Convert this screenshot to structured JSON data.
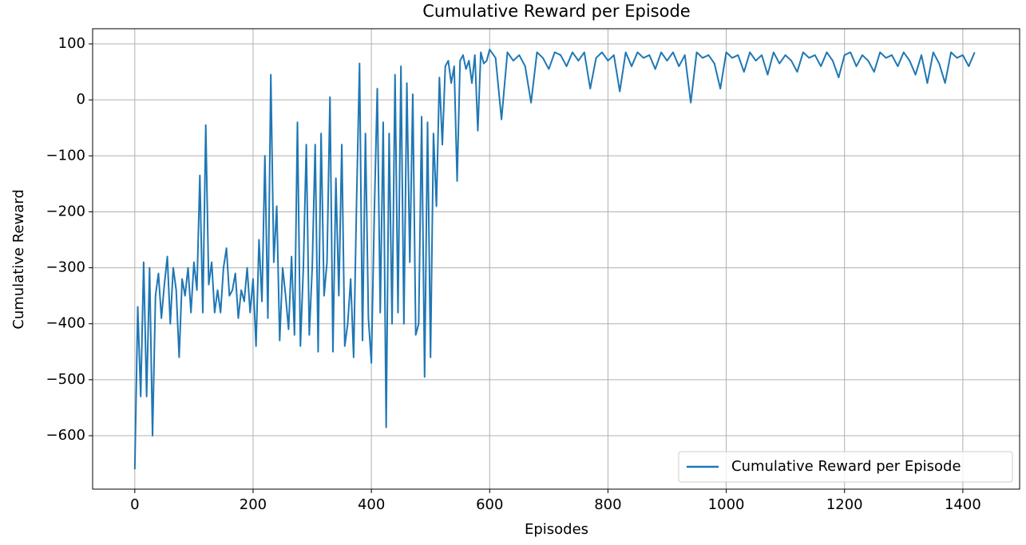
{
  "chart_data": {
    "type": "line",
    "title": "Cumulative Reward per Episode",
    "x_label": "Episodes",
    "y_label": "Cumulative Reward",
    "x": [
      0,
      5,
      10,
      15,
      20,
      25,
      30,
      35,
      40,
      45,
      50,
      55,
      60,
      65,
      70,
      75,
      80,
      85,
      90,
      95,
      100,
      105,
      110,
      115,
      120,
      125,
      130,
      135,
      140,
      145,
      150,
      155,
      160,
      165,
      170,
      175,
      180,
      185,
      190,
      195,
      200,
      205,
      210,
      215,
      220,
      225,
      230,
      235,
      240,
      245,
      250,
      255,
      260,
      265,
      270,
      275,
      280,
      285,
      290,
      295,
      300,
      305,
      310,
      315,
      320,
      325,
      330,
      335,
      340,
      345,
      350,
      355,
      360,
      365,
      370,
      375,
      380,
      385,
      390,
      395,
      400,
      405,
      410,
      415,
      420,
      425,
      430,
      435,
      440,
      445,
      450,
      455,
      460,
      465,
      470,
      475,
      480,
      485,
      490,
      495,
      500,
      505,
      510,
      515,
      520,
      525,
      530,
      535,
      540,
      545,
      550,
      555,
      560,
      565,
      570,
      575,
      580,
      585,
      590,
      595,
      600,
      610,
      620,
      630,
      640,
      650,
      660,
      670,
      680,
      690,
      700,
      710,
      720,
      730,
      740,
      750,
      760,
      770,
      780,
      790,
      800,
      810,
      820,
      830,
      840,
      850,
      860,
      870,
      880,
      890,
      900,
      910,
      920,
      930,
      940,
      950,
      960,
      970,
      980,
      990,
      1000,
      1010,
      1020,
      1030,
      1040,
      1050,
      1060,
      1070,
      1080,
      1090,
      1100,
      1110,
      1120,
      1130,
      1140,
      1150,
      1160,
      1170,
      1180,
      1190,
      1200,
      1210,
      1220,
      1230,
      1240,
      1250,
      1260,
      1270,
      1280,
      1290,
      1300,
      1310,
      1320,
      1330,
      1340,
      1350,
      1360,
      1370,
      1380,
      1390,
      1400,
      1410,
      1420
    ],
    "series": [
      {
        "name": "Cumulative Reward per Episode",
        "color": "#1f77b4",
        "values": [
          -660,
          -370,
          -530,
          -290,
          -530,
          -300,
          -600,
          -350,
          -310,
          -390,
          -330,
          -280,
          -400,
          -300,
          -340,
          -460,
          -320,
          -350,
          -300,
          -380,
          -290,
          -340,
          -135,
          -380,
          -45,
          -330,
          -290,
          -380,
          -340,
          -380,
          -300,
          -265,
          -350,
          -340,
          -310,
          -390,
          -340,
          -360,
          -300,
          -380,
          -320,
          -440,
          -250,
          -360,
          -100,
          -390,
          45,
          -290,
          -190,
          -430,
          -300,
          -350,
          -410,
          -280,
          -420,
          -40,
          -440,
          -300,
          -80,
          -420,
          -300,
          -80,
          -450,
          -60,
          -350,
          -290,
          5,
          -450,
          -140,
          -350,
          -80,
          -440,
          -400,
          -320,
          -460,
          -180,
          65,
          -430,
          -60,
          -390,
          -470,
          -200,
          20,
          -380,
          -40,
          -585,
          -60,
          -400,
          45,
          -380,
          60,
          -400,
          30,
          -290,
          10,
          -420,
          -400,
          -30,
          -495,
          -40,
          -460,
          -60,
          -190,
          40,
          -80,
          60,
          70,
          30,
          60,
          -145,
          70,
          80,
          55,
          70,
          30,
          80,
          -55,
          85,
          65,
          70,
          90,
          75,
          -35,
          85,
          70,
          80,
          60,
          -5,
          85,
          75,
          55,
          85,
          80,
          60,
          85,
          70,
          85,
          20,
          75,
          85,
          70,
          80,
          15,
          85,
          60,
          85,
          75,
          80,
          55,
          85,
          70,
          85,
          60,
          80,
          -5,
          85,
          75,
          80,
          65,
          20,
          85,
          75,
          80,
          50,
          85,
          70,
          80,
          45,
          85,
          65,
          80,
          70,
          50,
          85,
          75,
          80,
          60,
          85,
          70,
          40,
          80,
          85,
          60,
          80,
          70,
          50,
          85,
          75,
          80,
          60,
          85,
          70,
          45,
          80,
          30,
          85,
          65,
          30,
          85,
          75,
          80,
          60,
          85
        ]
      }
    ],
    "xlim": [
      -71.3,
      1496
    ],
    "ylim": [
      -695.5,
      127.1
    ],
    "xticks": [
      0,
      200,
      400,
      600,
      800,
      1000,
      1200,
      1400
    ],
    "yticks": [
      {
        "value": -600,
        "label": "−600"
      },
      {
        "value": -500,
        "label": "−500"
      },
      {
        "value": -400,
        "label": "−400"
      },
      {
        "value": -300,
        "label": "−300"
      },
      {
        "value": -200,
        "label": "−200"
      },
      {
        "value": -100,
        "label": "−100"
      },
      0,
      100
    ],
    "grid": true,
    "legend": "lower right"
  }
}
